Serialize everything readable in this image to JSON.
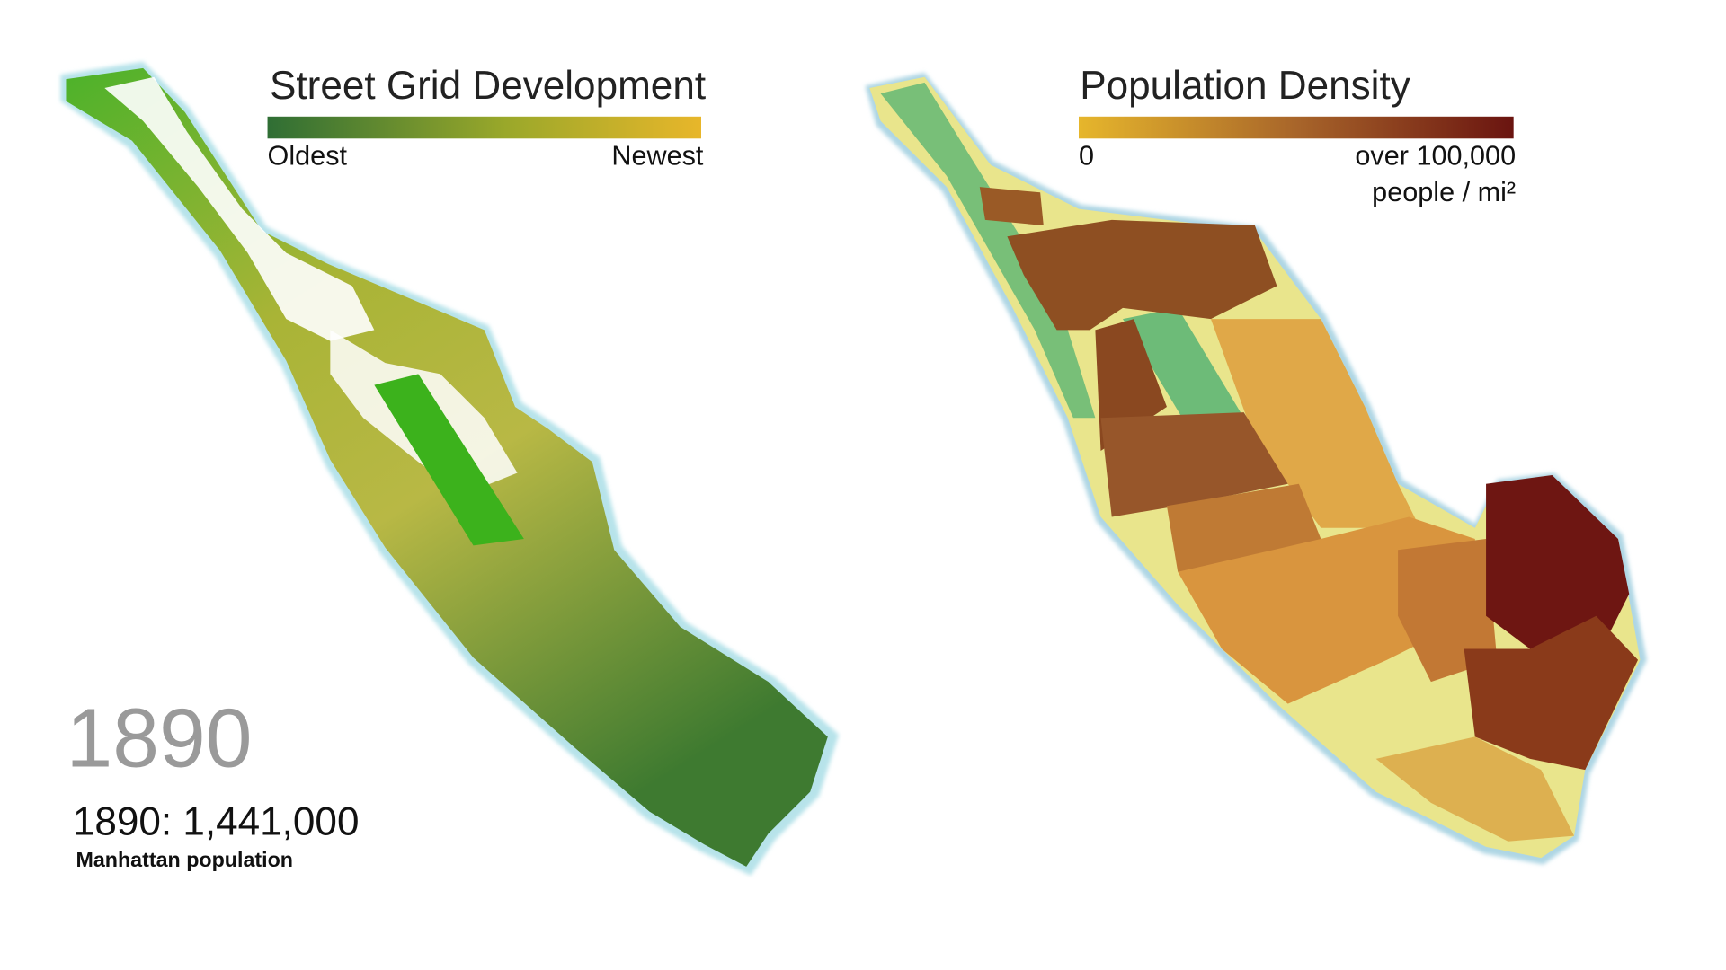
{
  "left_map": {
    "title": "Street Grid Development",
    "legend": {
      "min_label": "Oldest",
      "max_label": "Newest"
    }
  },
  "right_map": {
    "title": "Population Density",
    "legend": {
      "min_label": "0",
      "max_label": "over 100,000",
      "unit": "people / mi²"
    }
  },
  "year": "1890",
  "population": {
    "text": "1890: 1,441,000",
    "label": "Manhattan population"
  }
}
